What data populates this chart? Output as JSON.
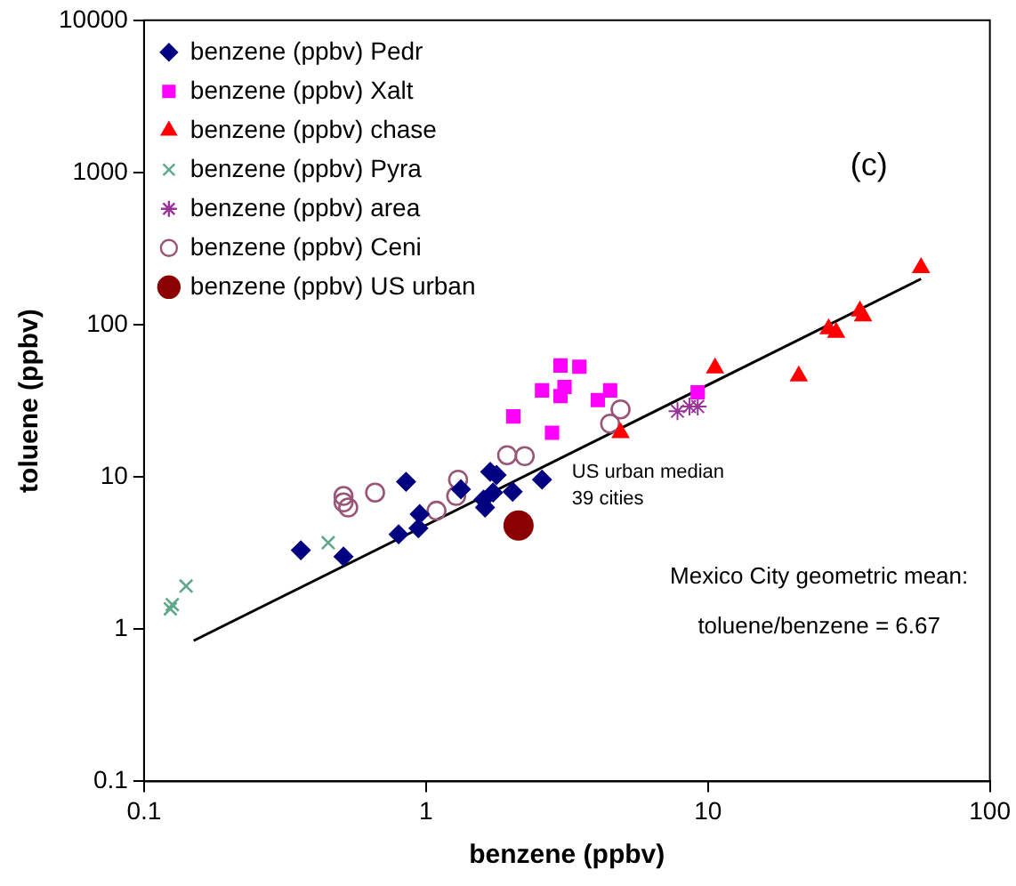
{
  "chart_data": {
    "type": "scatter",
    "xlabel": "benzene (ppbv)",
    "ylabel": "toluene (ppbv)",
    "log": "xy",
    "xlim": [
      0.1,
      100
    ],
    "ylim": [
      0.1,
      10000
    ],
    "xticks": [
      0.1,
      1,
      10,
      100
    ],
    "yticks": [
      0.1,
      1,
      10,
      100,
      1000,
      10000
    ],
    "grid": false,
    "legend": "top left",
    "annotations": [
      "(c)",
      {
        "text": "US urban median\n39 cities",
        "x": 2.13,
        "y": 4.8
      },
      "Mexico City geometric mean:",
      "toluene/benzene = 6.67"
    ],
    "series": [
      {
        "name": "benzene (ppbv) Pedr",
        "color": "#000080",
        "marker": "diamond",
        "x": [
          0.36,
          0.51,
          0.85,
          0.8,
          0.94,
          0.95,
          1.33,
          1.6,
          1.62,
          1.69,
          1.78,
          1.73,
          2.03,
          2.58
        ],
        "values": [
          3.3,
          3.0,
          9.3,
          4.2,
          4.6,
          5.7,
          8.3,
          7.1,
          6.3,
          10.8,
          10.3,
          7.9,
          8.0,
          9.6
        ]
      },
      {
        "name": "benzene (ppbv) Xalt",
        "color": "#ff00ff",
        "marker": "square",
        "x": [
          2.04,
          2.8,
          3.0,
          3.5,
          2.58,
          3.0,
          3.1,
          4.07,
          4.5,
          9.2
        ],
        "values": [
          25,
          19.5,
          54,
          53,
          37,
          34,
          39,
          32,
          37,
          36
        ]
      },
      {
        "name": "benzene (ppbv) chase",
        "color": "#ff0000",
        "marker": "triangle",
        "x": [
          4.9,
          10.6,
          21,
          26.8,
          28.5,
          34.6,
          35.5,
          57
        ],
        "values": [
          19.5,
          52,
          46,
          94,
          89,
          123,
          114,
          237
        ]
      },
      {
        "name": "benzene (ppbv) Pyra",
        "color": "#5fa88a",
        "marker": "cross",
        "x": [
          0.124,
          0.126,
          0.141,
          0.45
        ],
        "values": [
          1.36,
          1.45,
          1.92,
          3.7
        ]
      },
      {
        "name": "benzene (ppbv) area",
        "color": "#993399",
        "x": [
          7.8,
          8.6,
          9.2
        ],
        "values": [
          27,
          29,
          29
        ]
      },
      {
        "name": "benzene (ppbv) Ceni",
        "color": "#995577",
        "marker": "circle",
        "x": [
          0.51,
          0.51,
          0.53,
          0.66,
          1.09,
          1.3,
          1.28,
          1.94,
          2.24,
          4.9,
          4.5
        ],
        "values": [
          7.5,
          6.8,
          6.3,
          7.9,
          6.0,
          9.6,
          7.5,
          13.9,
          13.7,
          27.8,
          22.4
        ]
      },
      {
        "name": "benzene (ppbv) US urban",
        "color": "#8b0000",
        "marker": "circle",
        "x": [
          2.13
        ],
        "values": [
          4.8
        ]
      },
      {
        "type": "line",
        "color": "#000000",
        "marker": "none",
        "x": [
          0.15,
          57
        ],
        "values": [
          0.84,
          200
        ]
      }
    ]
  }
}
